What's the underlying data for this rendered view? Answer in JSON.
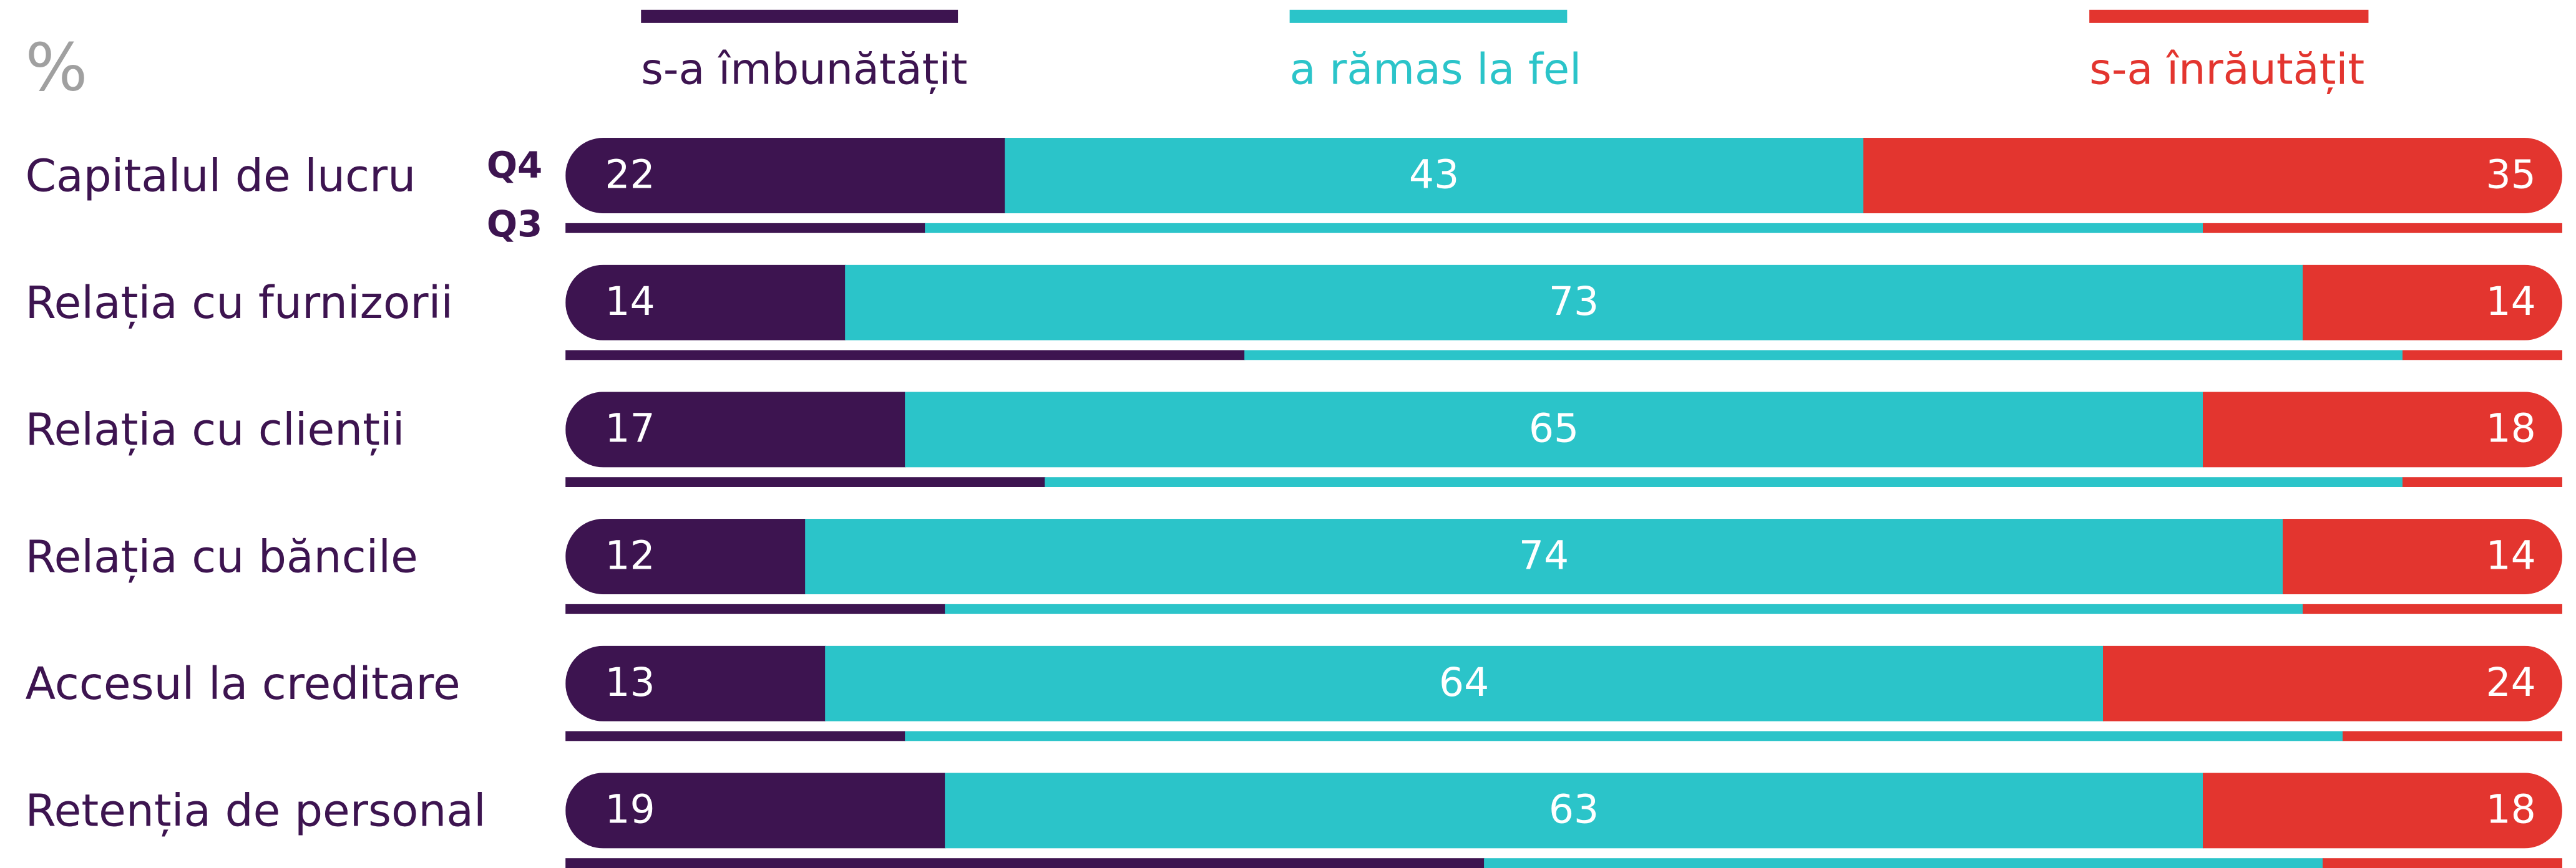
{
  "chart_data": {
    "type": "stacked-bar",
    "unit": "%",
    "periods": [
      "Q4",
      "Q3"
    ],
    "xlim": [
      0,
      100
    ],
    "categories": [
      "Capitalul de lucru",
      "Relația cu furnizorii",
      "Relația cu clienții",
      "Relația cu băncile",
      "Accesul la creditare",
      "Retenția de personal"
    ],
    "series": [
      {
        "name": "s-a îmbunătățit",
        "color": "#3d1450",
        "values": [
          22,
          14,
          17,
          12,
          13,
          19
        ],
        "values_q3": [
          18,
          34,
          24,
          19,
          17,
          46
        ]
      },
      {
        "name": "a rămas la fel",
        "color": "#2bc4c9",
        "values": [
          43,
          73,
          65,
          74,
          64,
          63
        ],
        "values_q3": [
          64,
          58,
          68,
          68,
          72,
          42
        ]
      },
      {
        "name": "s-a înrăutățit",
        "color": "#e3352f",
        "values": [
          35,
          14,
          18,
          14,
          24,
          18
        ],
        "values_q3": [
          18,
          8,
          8,
          13,
          11,
          12
        ]
      }
    ]
  }
}
